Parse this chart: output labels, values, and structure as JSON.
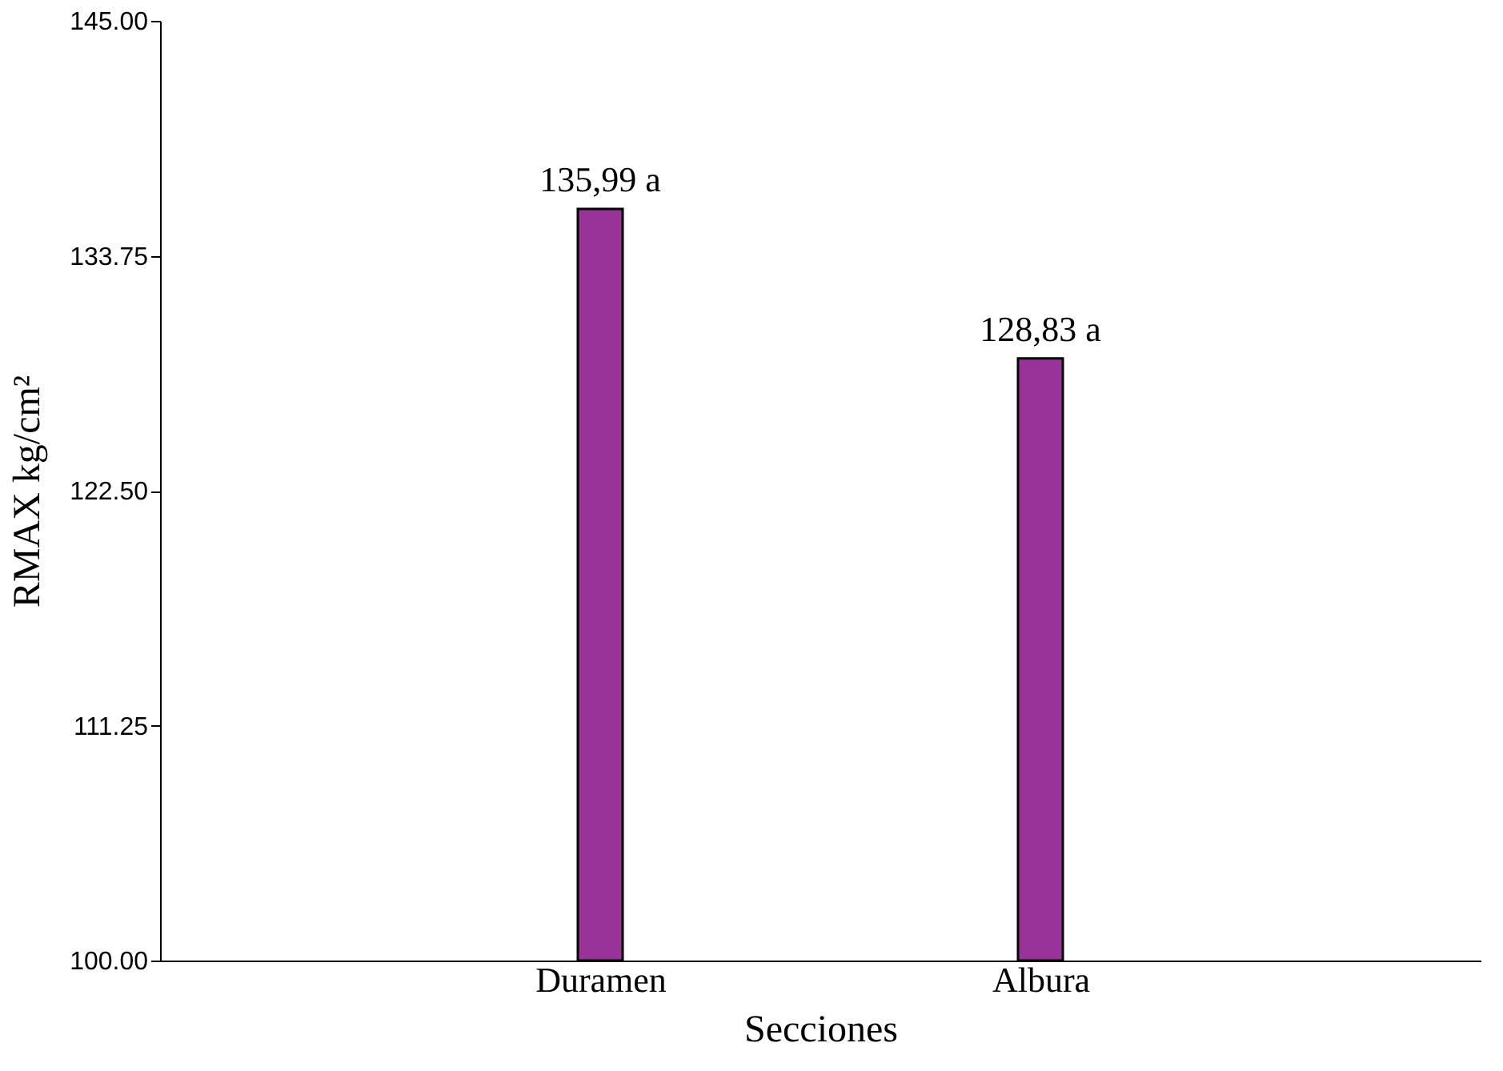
{
  "chart_data": {
    "type": "bar",
    "xlabel": "Secciones",
    "ylabel": "RMAX kg/cm²",
    "categories": [
      "Duramen",
      "Albura"
    ],
    "series": [
      {
        "color": "#993399",
        "values": [
          135.99,
          128.83
        ],
        "value_labels": [
          "135,99 a",
          "128,83 a"
        ]
      }
    ],
    "ylim": [
      100,
      145
    ],
    "yticks": [
      {
        "value": 100,
        "label": "100.00"
      },
      {
        "value": 111.25,
        "label": "111.25"
      },
      {
        "value": 122.5,
        "label": "122.50"
      },
      {
        "value": 133.75,
        "label": "133.75"
      },
      {
        "value": 145,
        "label": "145.00"
      }
    ],
    "grid": false
  }
}
